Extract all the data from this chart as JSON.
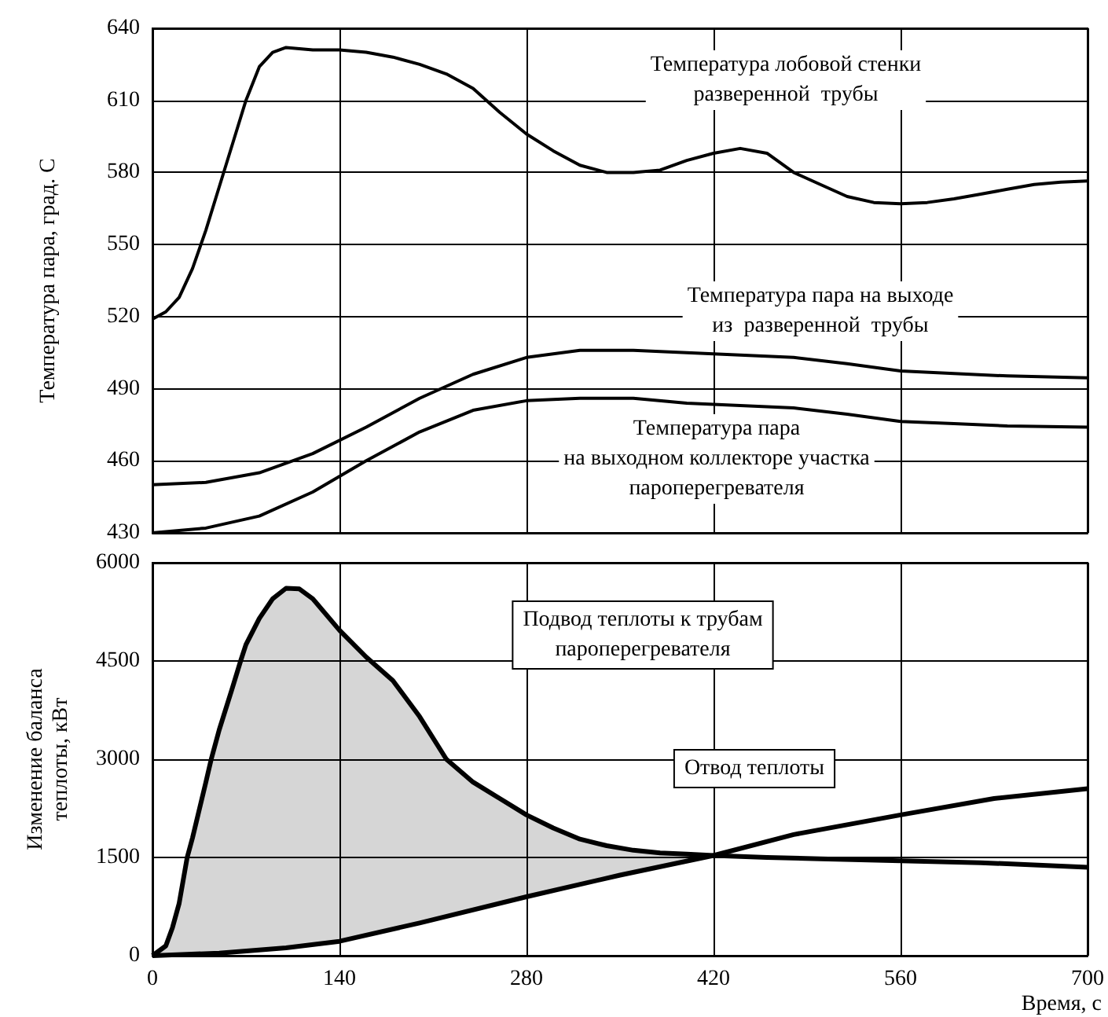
{
  "chart_data": [
    {
      "type": "line",
      "ylabel": "Температура пара, град. С",
      "xlim": [
        0,
        700
      ],
      "xticks": [
        0,
        140,
        280,
        420,
        560,
        700
      ],
      "ylim": [
        430,
        640
      ],
      "yticks": [
        430,
        460,
        490,
        520,
        550,
        580,
        610,
        640
      ],
      "grid": true,
      "tick_labels": "y",
      "marker": "none",
      "line_style": "solid",
      "annotations": [
        "Температура лобовой стенки\nразверенной  трубы",
        "Температура пара на выходе\nиз  разверенной  трубы",
        "Температура пара\nна выходном коллекторе участка\nпароперегревателя"
      ],
      "series": [
        {
          "color": "#000000",
          "x": [
            0,
            10,
            20,
            30,
            40,
            50,
            60,
            70,
            80,
            90,
            100,
            120,
            140,
            160,
            180,
            200,
            220,
            240,
            260,
            280,
            300,
            320,
            340,
            360,
            380,
            400,
            420,
            440,
            460,
            480,
            500,
            520,
            540,
            560,
            580,
            600,
            620,
            640,
            660,
            680,
            700
          ],
          "values": [
            519,
            522,
            528,
            540,
            556,
            574,
            592,
            610,
            624,
            630,
            632,
            631,
            631,
            630,
            628,
            625,
            621,
            615,
            605,
            596,
            589,
            583,
            580,
            580,
            581,
            585,
            588,
            590,
            588,
            580,
            575,
            570,
            567.5,
            567,
            567.5,
            569,
            571,
            573,
            575,
            576,
            576.5
          ]
        },
        {
          "color": "#000000",
          "x": [
            0,
            40,
            80,
            120,
            160,
            200,
            240,
            280,
            320,
            360,
            400,
            440,
            480,
            520,
            560,
            600,
            640,
            700
          ],
          "values": [
            450,
            451,
            455,
            463,
            474,
            486,
            496,
            503,
            506,
            506,
            505,
            504,
            503,
            500.4,
            497.4,
            496.3,
            495.3,
            494.5
          ]
        },
        {
          "color": "#000000",
          "x": [
            0,
            40,
            80,
            120,
            160,
            200,
            240,
            280,
            320,
            360,
            400,
            440,
            480,
            520,
            560,
            600,
            640,
            700
          ],
          "values": [
            430,
            432,
            437,
            447,
            460,
            472,
            481,
            485,
            486,
            486,
            484,
            483,
            482,
            479.4,
            476.4,
            475.5,
            474.5,
            474
          ]
        }
      ]
    },
    {
      "type": "line",
      "xlabel": "Время, с",
      "ylabel": "Изменение баланса\nтеплоты, кВт",
      "xlim": [
        0,
        700
      ],
      "xticks": [
        0,
        140,
        280,
        420,
        560,
        700
      ],
      "ylim": [
        0,
        6000
      ],
      "yticks": [
        0,
        1500,
        3000,
        4500,
        6000
      ],
      "grid": true,
      "marker": "none",
      "line_style": "solid",
      "annotations": [
        "Подвод теплоты к трубам\nпароперегревателя",
        "Отвод теплоты"
      ],
      "series": [
        {
          "color": "#000000",
          "x": [
            0,
            10,
            15,
            20,
            26,
            30,
            40,
            44,
            50,
            60,
            66,
            70,
            80,
            90,
            100,
            110,
            120,
            140,
            160,
            180,
            200,
            220,
            240,
            260,
            280,
            300,
            320,
            340,
            360,
            380,
            400,
            420,
            460,
            500,
            560,
            620,
            700
          ],
          "values": [
            0,
            150,
            430,
            800,
            1500,
            1800,
            2650,
            3000,
            3450,
            4100,
            4500,
            4750,
            5150,
            5450,
            5610,
            5600,
            5450,
            4970,
            4560,
            4200,
            3650,
            3000,
            2650,
            2400,
            2150,
            1950,
            1780,
            1680,
            1610,
            1570,
            1550,
            1530,
            1500,
            1480,
            1450,
            1420,
            1350
          ],
          "lower": [
            0,
            8,
            12,
            16,
            21,
            24,
            32,
            35,
            40,
            56,
            66,
            72,
            88,
            104,
            120,
            145,
            170,
            220,
            313,
            407,
            500,
            600,
            700,
            800,
            900,
            994,
            1088,
            1182,
            1273,
            1359,
            1445,
            1530,
            null,
            null,
            null,
            null,
            null
          ],
          "upper": [
            0,
            150,
            430,
            800,
            1500,
            1800,
            2650,
            3000,
            3450,
            4100,
            4500,
            4750,
            5150,
            5450,
            5610,
            5600,
            5450,
            4970,
            4560,
            4200,
            3650,
            3000,
            2650,
            2400,
            2150,
            1950,
            1780,
            1680,
            1610,
            1570,
            1550,
            1530,
            null,
            null,
            null,
            null,
            null
          ]
        },
        {
          "color": "#000000",
          "x": [
            0,
            50,
            100,
            140,
            200,
            280,
            350,
            420,
            480,
            560,
            630,
            700
          ],
          "values": [
            0,
            40,
            120,
            220,
            500,
            900,
            1230,
            1530,
            1850,
            2150,
            2400,
            2550
          ]
        }
      ]
    }
  ]
}
